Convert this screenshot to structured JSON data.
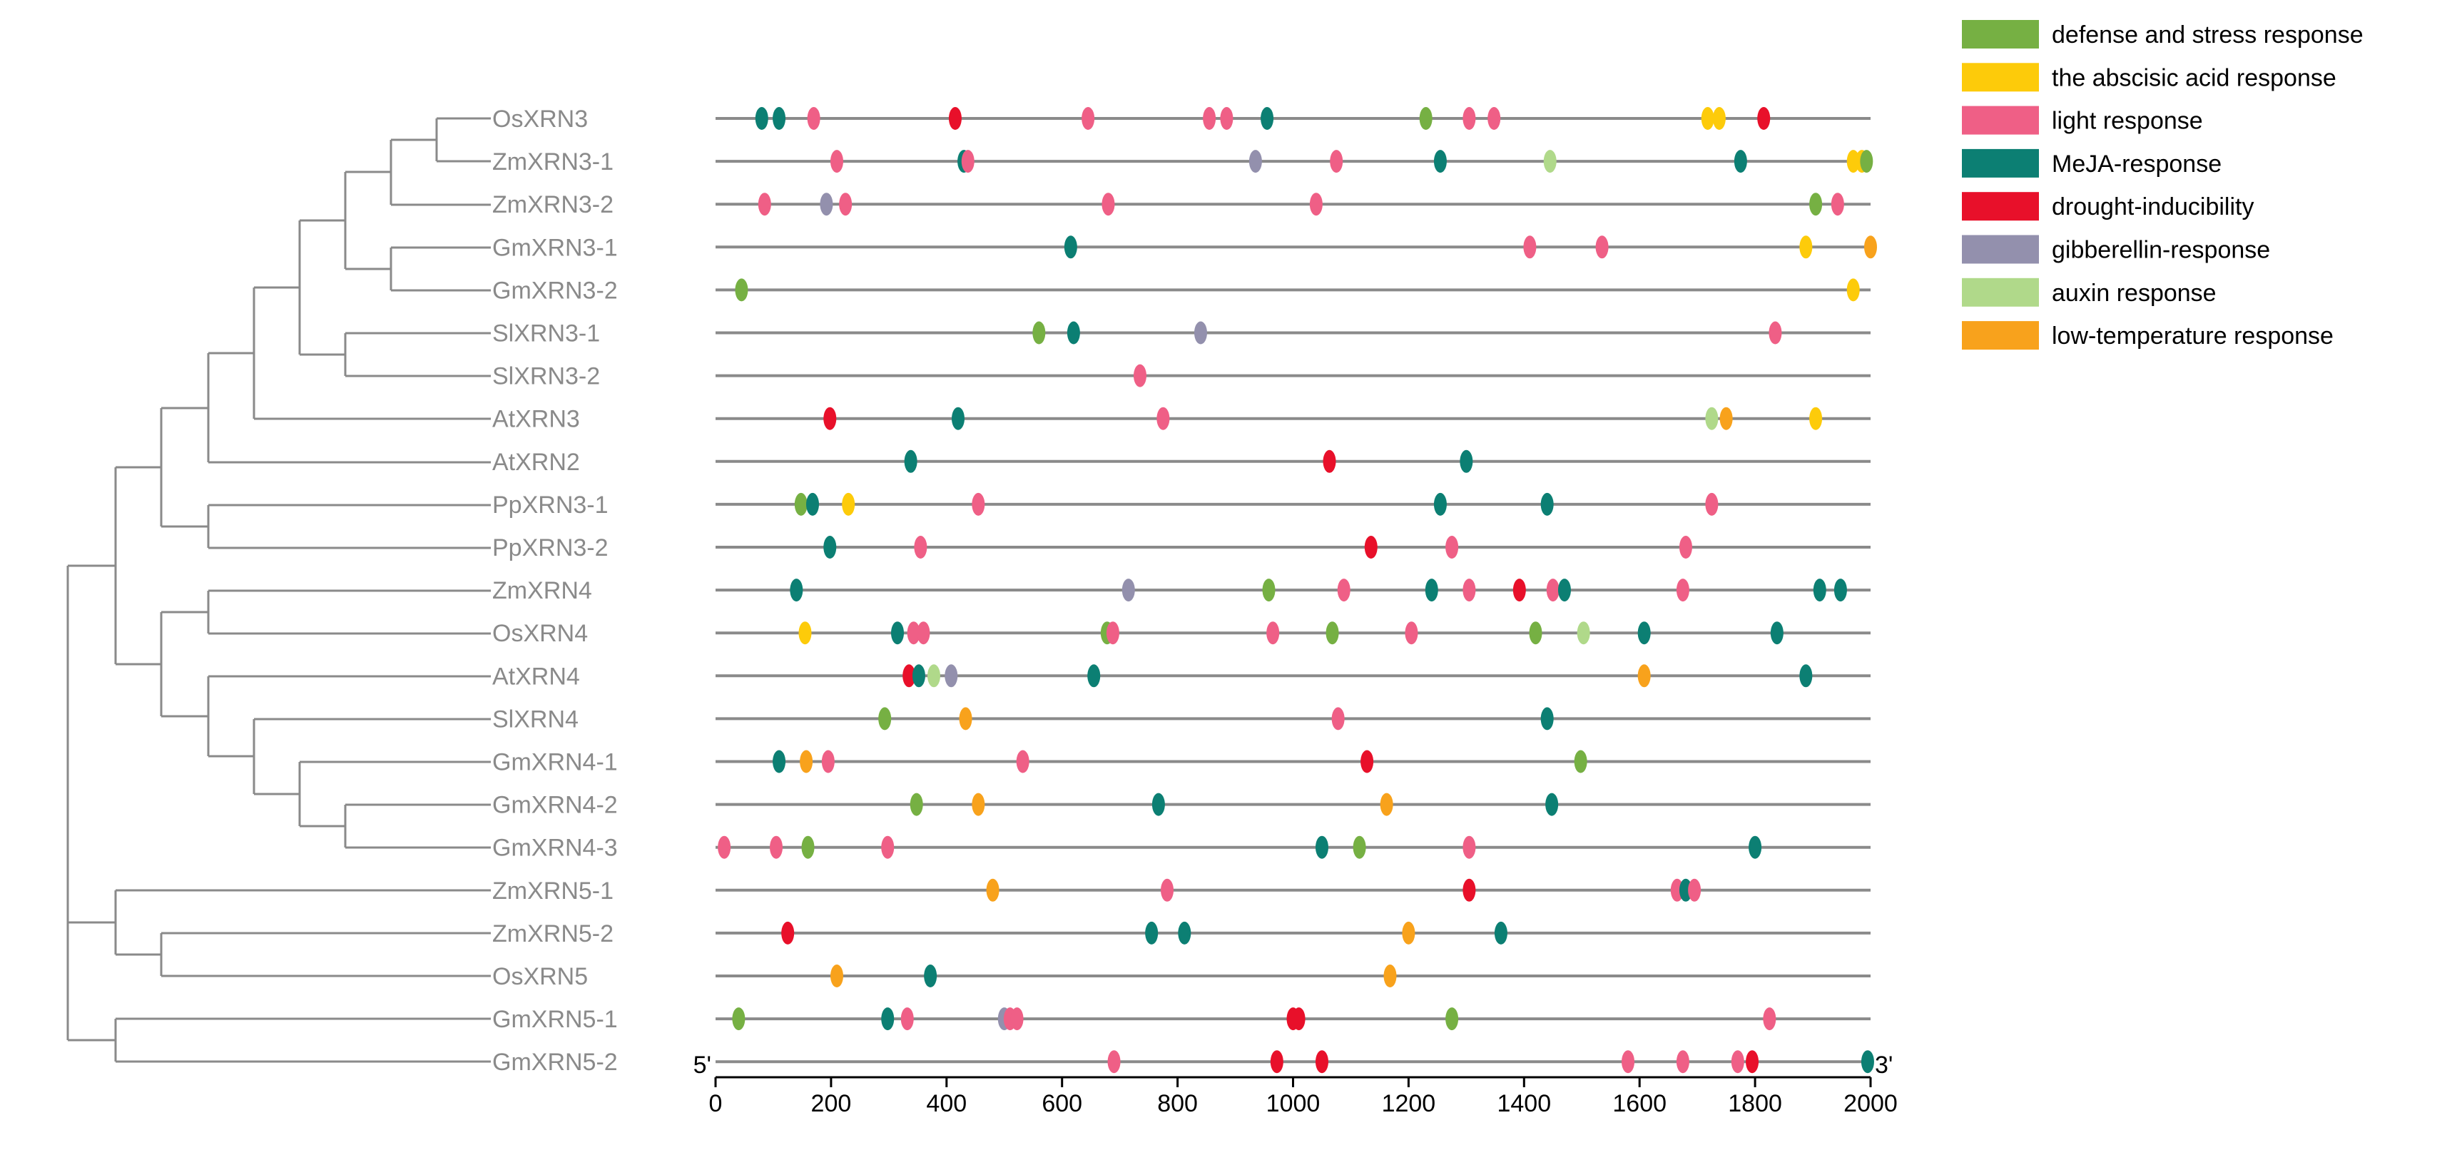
{
  "chart_data": {
    "type": "scatter",
    "xlim": [
      0,
      2000
    ],
    "ticks": [
      "0",
      "200",
      "400",
      "600",
      "800",
      "1000",
      "1200",
      "1400",
      "1600",
      "1800",
      "2000"
    ],
    "tick_values": [
      0,
      200,
      400,
      600,
      800,
      1000,
      1200,
      1400,
      1600,
      1800,
      2000
    ],
    "start_label": "5'",
    "end_label": "3'",
    "legend": [
      {
        "key": "defense",
        "label": "defense and stress response",
        "color": "#76b043"
      },
      {
        "key": "aba",
        "label": "the abscisic acid response",
        "color": "#fdcb0a"
      },
      {
        "key": "light",
        "label": "light response",
        "color": "#ef5f86"
      },
      {
        "key": "meja",
        "label": "MeJA-response",
        "color": "#0c7f73"
      },
      {
        "key": "drought",
        "label": "drought-inducibility",
        "color": "#e8102a"
      },
      {
        "key": "gib",
        "label": "gibberellin-response",
        "color": "#9390ad"
      },
      {
        "key": "auxin",
        "label": "auxin response",
        "color": "#b0d98a"
      },
      {
        "key": "lowtemp",
        "label": "low-temperature response",
        "color": "#f8a21c"
      }
    ],
    "genes": [
      {
        "name": "OsXRN3",
        "elements": [
          {
            "x": 80,
            "t": "meja"
          },
          {
            "x": 110,
            "t": "meja"
          },
          {
            "x": 170,
            "t": "light"
          },
          {
            "x": 415,
            "t": "drought"
          },
          {
            "x": 645,
            "t": "light"
          },
          {
            "x": 855,
            "t": "light"
          },
          {
            "x": 885,
            "t": "light"
          },
          {
            "x": 955,
            "t": "meja"
          },
          {
            "x": 1230,
            "t": "defense"
          },
          {
            "x": 1305,
            "t": "light"
          },
          {
            "x": 1348,
            "t": "light"
          },
          {
            "x": 1718,
            "t": "aba"
          },
          {
            "x": 1738,
            "t": "aba"
          },
          {
            "x": 1815,
            "t": "drought"
          }
        ]
      },
      {
        "name": "ZmXRN3-1",
        "elements": [
          {
            "x": 210,
            "t": "light"
          },
          {
            "x": 430,
            "t": "meja"
          },
          {
            "x": 437,
            "t": "light"
          },
          {
            "x": 935,
            "t": "gib"
          },
          {
            "x": 1075,
            "t": "light"
          },
          {
            "x": 1255,
            "t": "meja"
          },
          {
            "x": 1445,
            "t": "auxin"
          },
          {
            "x": 1775,
            "t": "meja"
          },
          {
            "x": 1970,
            "t": "aba"
          },
          {
            "x": 1985,
            "t": "aba"
          },
          {
            "x": 1993,
            "t": "defense"
          }
        ]
      },
      {
        "name": "ZmXRN3-2",
        "elements": [
          {
            "x": 85,
            "t": "light"
          },
          {
            "x": 192,
            "t": "gib"
          },
          {
            "x": 225,
            "t": "light"
          },
          {
            "x": 680,
            "t": "light"
          },
          {
            "x": 1040,
            "t": "light"
          },
          {
            "x": 1905,
            "t": "defense"
          },
          {
            "x": 1943,
            "t": "light"
          }
        ]
      },
      {
        "name": "GmXRN3-1",
        "elements": [
          {
            "x": 615,
            "t": "meja"
          },
          {
            "x": 1410,
            "t": "light"
          },
          {
            "x": 1535,
            "t": "light"
          },
          {
            "x": 1888,
            "t": "aba"
          },
          {
            "x": 2000,
            "t": "lowtemp"
          }
        ]
      },
      {
        "name": "GmXRN3-2",
        "elements": [
          {
            "x": 45,
            "t": "defense"
          },
          {
            "x": 1970,
            "t": "aba"
          }
        ]
      },
      {
        "name": "SlXRN3-1",
        "elements": [
          {
            "x": 560,
            "t": "defense"
          },
          {
            "x": 620,
            "t": "meja"
          },
          {
            "x": 840,
            "t": "gib"
          },
          {
            "x": 1835,
            "t": "light"
          }
        ]
      },
      {
        "name": "SlXRN3-2",
        "elements": [
          {
            "x": 735,
            "t": "light"
          }
        ]
      },
      {
        "name": "AtXRN3",
        "elements": [
          {
            "x": 198,
            "t": "drought"
          },
          {
            "x": 420,
            "t": "meja"
          },
          {
            "x": 775,
            "t": "light"
          },
          {
            "x": 1725,
            "t": "auxin"
          },
          {
            "x": 1750,
            "t": "lowtemp"
          },
          {
            "x": 1905,
            "t": "aba"
          }
        ]
      },
      {
        "name": "AtXRN2",
        "elements": [
          {
            "x": 338,
            "t": "meja"
          },
          {
            "x": 1063,
            "t": "drought"
          },
          {
            "x": 1300,
            "t": "meja"
          }
        ]
      },
      {
        "name": "PpXRN3-1",
        "elements": [
          {
            "x": 148,
            "t": "defense"
          },
          {
            "x": 168,
            "t": "meja"
          },
          {
            "x": 230,
            "t": "aba"
          },
          {
            "x": 455,
            "t": "light"
          },
          {
            "x": 1255,
            "t": "meja"
          },
          {
            "x": 1440,
            "t": "meja"
          },
          {
            "x": 1725,
            "t": "light"
          }
        ]
      },
      {
        "name": "PpXRN3-2",
        "elements": [
          {
            "x": 198,
            "t": "meja"
          },
          {
            "x": 355,
            "t": "light"
          },
          {
            "x": 1135,
            "t": "drought"
          },
          {
            "x": 1275,
            "t": "light"
          },
          {
            "x": 1680,
            "t": "light"
          }
        ]
      },
      {
        "name": "ZmXRN4",
        "elements": [
          {
            "x": 140,
            "t": "meja"
          },
          {
            "x": 715,
            "t": "gib"
          },
          {
            "x": 958,
            "t": "defense"
          },
          {
            "x": 1088,
            "t": "light"
          },
          {
            "x": 1240,
            "t": "meja"
          },
          {
            "x": 1305,
            "t": "light"
          },
          {
            "x": 1392,
            "t": "drought"
          },
          {
            "x": 1450,
            "t": "light"
          },
          {
            "x": 1470,
            "t": "meja"
          },
          {
            "x": 1675,
            "t": "light"
          },
          {
            "x": 1912,
            "t": "meja"
          },
          {
            "x": 1948,
            "t": "meja"
          }
        ]
      },
      {
        "name": "OsXRN4",
        "elements": [
          {
            "x": 155,
            "t": "aba"
          },
          {
            "x": 315,
            "t": "meja"
          },
          {
            "x": 343,
            "t": "light"
          },
          {
            "x": 360,
            "t": "light"
          },
          {
            "x": 678,
            "t": "defense"
          },
          {
            "x": 688,
            "t": "light"
          },
          {
            "x": 965,
            "t": "light"
          },
          {
            "x": 1068,
            "t": "defense"
          },
          {
            "x": 1205,
            "t": "light"
          },
          {
            "x": 1420,
            "t": "defense"
          },
          {
            "x": 1503,
            "t": "auxin"
          },
          {
            "x": 1608,
            "t": "meja"
          },
          {
            "x": 1838,
            "t": "meja"
          }
        ]
      },
      {
        "name": "AtXRN4",
        "elements": [
          {
            "x": 335,
            "t": "drought"
          },
          {
            "x": 352,
            "t": "meja"
          },
          {
            "x": 378,
            "t": "auxin"
          },
          {
            "x": 408,
            "t": "gib"
          },
          {
            "x": 655,
            "t": "meja"
          },
          {
            "x": 1608,
            "t": "lowtemp"
          },
          {
            "x": 1888,
            "t": "meja"
          }
        ]
      },
      {
        "name": "SlXRN4",
        "elements": [
          {
            "x": 293,
            "t": "defense"
          },
          {
            "x": 433,
            "t": "lowtemp"
          },
          {
            "x": 1078,
            "t": "light"
          },
          {
            "x": 1440,
            "t": "meja"
          }
        ]
      },
      {
        "name": "GmXRN4-1",
        "elements": [
          {
            "x": 110,
            "t": "meja"
          },
          {
            "x": 157,
            "t": "lowtemp"
          },
          {
            "x": 195,
            "t": "light"
          },
          {
            "x": 532,
            "t": "light"
          },
          {
            "x": 1128,
            "t": "drought"
          },
          {
            "x": 1498,
            "t": "defense"
          }
        ]
      },
      {
        "name": "GmXRN4-2",
        "elements": [
          {
            "x": 348,
            "t": "defense"
          },
          {
            "x": 455,
            "t": "lowtemp"
          },
          {
            "x": 767,
            "t": "meja"
          },
          {
            "x": 1162,
            "t": "lowtemp"
          },
          {
            "x": 1448,
            "t": "meja"
          }
        ]
      },
      {
        "name": "GmXRN4-3",
        "elements": [
          {
            "x": 15,
            "t": "light"
          },
          {
            "x": 105,
            "t": "light"
          },
          {
            "x": 160,
            "t": "defense"
          },
          {
            "x": 298,
            "t": "light"
          },
          {
            "x": 1050,
            "t": "meja"
          },
          {
            "x": 1115,
            "t": "defense"
          },
          {
            "x": 1305,
            "t": "light"
          },
          {
            "x": 1800,
            "t": "meja"
          }
        ]
      },
      {
        "name": "ZmXRN5-1",
        "elements": [
          {
            "x": 480,
            "t": "lowtemp"
          },
          {
            "x": 782,
            "t": "light"
          },
          {
            "x": 1305,
            "t": "drought"
          },
          {
            "x": 1665,
            "t": "light"
          },
          {
            "x": 1680,
            "t": "meja"
          },
          {
            "x": 1695,
            "t": "light"
          }
        ]
      },
      {
        "name": "ZmXRN5-2",
        "elements": [
          {
            "x": 125,
            "t": "drought"
          },
          {
            "x": 755,
            "t": "meja"
          },
          {
            "x": 812,
            "t": "meja"
          },
          {
            "x": 1200,
            "t": "lowtemp"
          },
          {
            "x": 1360,
            "t": "meja"
          }
        ]
      },
      {
        "name": "OsXRN5",
        "elements": [
          {
            "x": 210,
            "t": "lowtemp"
          },
          {
            "x": 372,
            "t": "meja"
          },
          {
            "x": 1168,
            "t": "lowtemp"
          }
        ]
      },
      {
        "name": "GmXRN5-1",
        "elements": [
          {
            "x": 40,
            "t": "defense"
          },
          {
            "x": 298,
            "t": "meja"
          },
          {
            "x": 332,
            "t": "light"
          },
          {
            "x": 500,
            "t": "gib"
          },
          {
            "x": 510,
            "t": "light"
          },
          {
            "x": 522,
            "t": "light"
          },
          {
            "x": 1000,
            "t": "drought"
          },
          {
            "x": 1010,
            "t": "drought"
          },
          {
            "x": 1275,
            "t": "defense"
          },
          {
            "x": 1825,
            "t": "light"
          }
        ]
      },
      {
        "name": "GmXRN5-2",
        "elements": [
          {
            "x": 690,
            "t": "light"
          },
          {
            "x": 972,
            "t": "drought"
          },
          {
            "x": 1050,
            "t": "drought"
          },
          {
            "x": 1580,
            "t": "light"
          },
          {
            "x": 1675,
            "t": "light"
          },
          {
            "x": 1770,
            "t": "light"
          },
          {
            "x": 1795,
            "t": "drought"
          },
          {
            "x": 1995,
            "t": "meja"
          }
        ]
      }
    ]
  }
}
